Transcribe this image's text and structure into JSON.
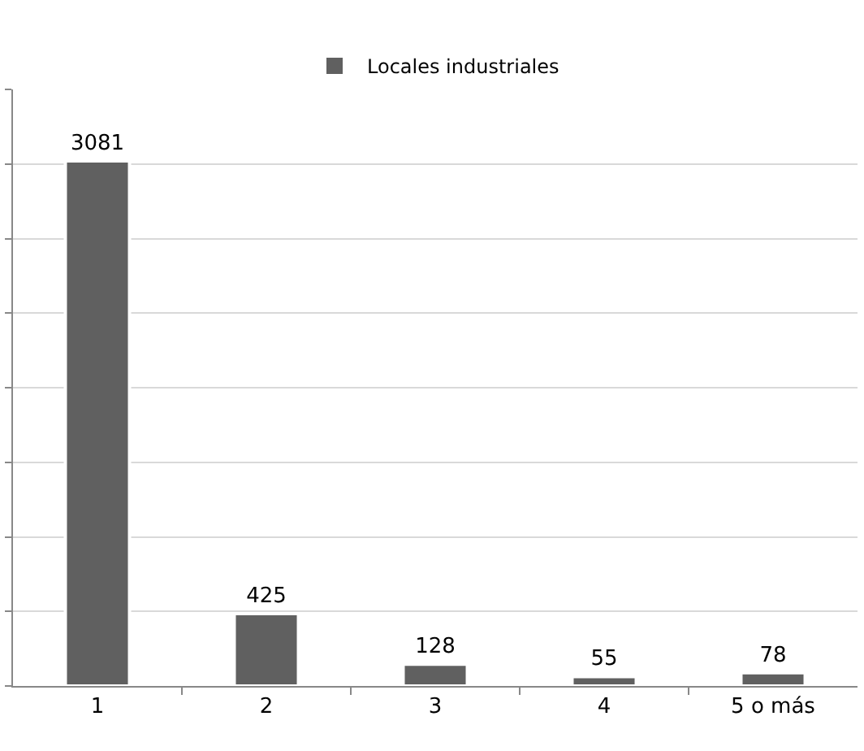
{
  "chart_data": {
    "type": "bar",
    "categories": [
      "1",
      "2",
      "3",
      "4",
      "5 o más"
    ],
    "series": [
      {
        "name": "Locales industriales",
        "color": "#606060",
        "values": [
          3081,
          425,
          128,
          55,
          78
        ]
      }
    ],
    "data_labels": true,
    "legend": "top",
    "grid": "y",
    "tick_labels": "x",
    "ylim": [
      0,
      3500
    ],
    "yticks": [
      {
        "value": 0,
        "label": null
      },
      {
        "value": 437.5,
        "label": null
      },
      {
        "value": 875,
        "label": null
      },
      {
        "value": 1312.5,
        "label": null
      },
      {
        "value": 1750,
        "label": null
      },
      {
        "value": 2187.5,
        "label": null
      },
      {
        "value": 2625,
        "label": null
      },
      {
        "value": 3062.5,
        "label": null
      },
      {
        "value": 3500,
        "label": null
      }
    ]
  }
}
